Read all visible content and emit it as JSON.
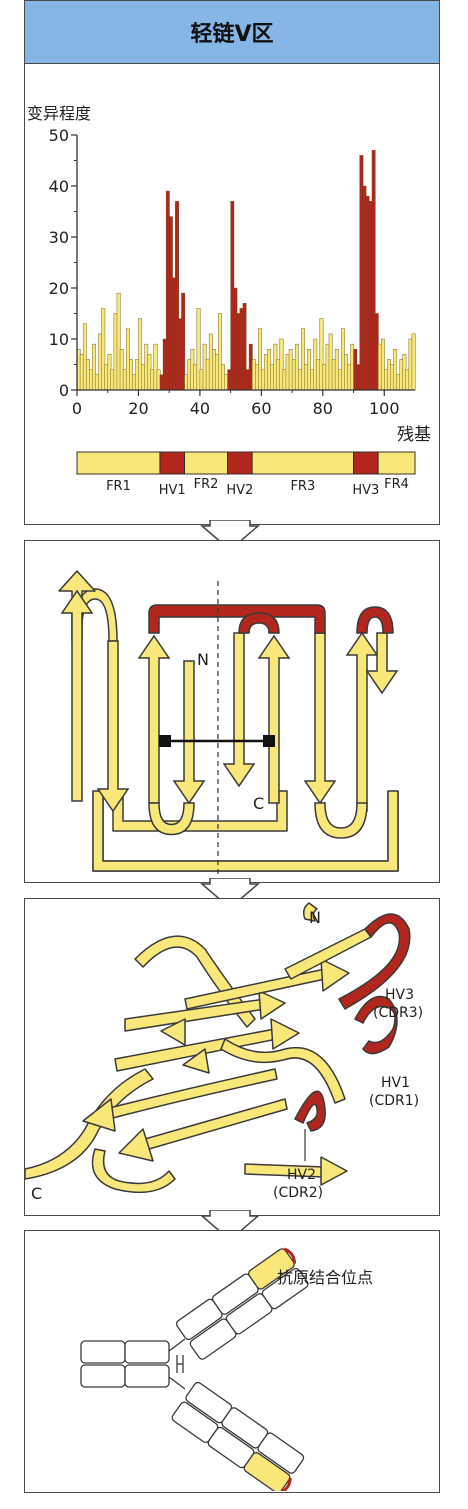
{
  "header": {
    "title": "轻链V区"
  },
  "colors": {
    "yellow": "#f9e77a",
    "red": "#b3261e",
    "blue": "#86b6e6",
    "outline": "#3a3a3a"
  },
  "chart_data": {
    "type": "bar",
    "title": "",
    "ylabel": "变异程度",
    "xlabel": "残基",
    "xlim": [
      0,
      110
    ],
    "ylim": [
      0,
      50
    ],
    "xticks": [
      0,
      20,
      40,
      60,
      80,
      100
    ],
    "yticks": [
      0,
      10,
      20,
      30,
      40,
      50
    ],
    "values": [
      8,
      7,
      13,
      6,
      4,
      9,
      3,
      11,
      16,
      5,
      7,
      4,
      15,
      19,
      8,
      4,
      12,
      6,
      3,
      6,
      14,
      5,
      9,
      7,
      4,
      9,
      4,
      3,
      10,
      39,
      34,
      22,
      37,
      14,
      19,
      3,
      6,
      8,
      5,
      16,
      4,
      9,
      6,
      11,
      8,
      7,
      15,
      5,
      3,
      4,
      37,
      20,
      15,
      16,
      17,
      4,
      9,
      6,
      5,
      12,
      4,
      7,
      8,
      5,
      9,
      6,
      10,
      4,
      7,
      8,
      6,
      9,
      4,
      12,
      5,
      8,
      4,
      10,
      6,
      14,
      5,
      9,
      11,
      6,
      8,
      4,
      12,
      7,
      5,
      9,
      8,
      5,
      46,
      40,
      38,
      37,
      47,
      15,
      9,
      10,
      4,
      6,
      5,
      8,
      3,
      6,
      7,
      4,
      10,
      11
    ],
    "hv_regions": [
      {
        "name": "HV1",
        "start": 27,
        "end": 35
      },
      {
        "name": "HV2",
        "start": 49,
        "end": 57
      },
      {
        "name": "HV3",
        "start": 90,
        "end": 98
      }
    ],
    "region_bar": [
      {
        "name": "FR1",
        "start": 0,
        "end": 27,
        "type": "fr"
      },
      {
        "name": "HV1",
        "start": 27,
        "end": 35,
        "type": "hv"
      },
      {
        "name": "FR2",
        "start": 35,
        "end": 49,
        "type": "fr"
      },
      {
        "name": "HV2",
        "start": 49,
        "end": 57,
        "type": "hv"
      },
      {
        "name": "FR3",
        "start": 57,
        "end": 90,
        "type": "fr"
      },
      {
        "name": "HV3",
        "start": 90,
        "end": 98,
        "type": "hv"
      },
      {
        "name": "FR4",
        "start": 98,
        "end": 110,
        "type": "fr"
      }
    ]
  },
  "panel2": {
    "n_label": "N",
    "c_label": "C"
  },
  "panel3": {
    "n_label": "N",
    "c_label": "C",
    "hv3": "HV3",
    "cdr3": "(CDR3)",
    "hv1": "HV1",
    "cdr1": "(CDR1)",
    "hv2": "HV2",
    "cdr2": "(CDR2)"
  },
  "panel4": {
    "antigen_site": "抗原结合位点"
  }
}
